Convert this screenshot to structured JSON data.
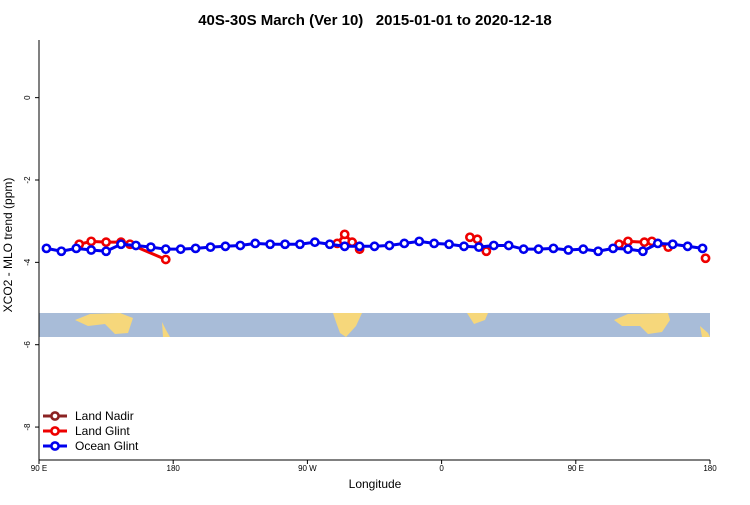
{
  "chart_data": {
    "type": "line",
    "title": "40S-30S March (Ver 10)   2015-01-01 to 2020-12-18",
    "xlabel": "Longitude",
    "ylabel": "XCO2 - MLO trend (ppm)",
    "xlim": [
      90,
      540
    ],
    "ylim": [
      -8.8,
      1.4
    ],
    "xticks": [
      {
        "value": 90,
        "label": "90 E"
      },
      {
        "value": 180,
        "label": "180"
      },
      {
        "value": 270,
        "label": "90 W"
      },
      {
        "value": 360,
        "label": "0"
      },
      {
        "value": 450,
        "label": "90 E"
      },
      {
        "value": 540,
        "label": "180"
      }
    ],
    "yticks": [
      0,
      -2,
      -4,
      -6,
      -8
    ],
    "legend": "bottom-left",
    "series": [
      {
        "name": "Land Nadir",
        "color": "#8b2323",
        "x": [],
        "values": []
      },
      {
        "name": "Land Glint",
        "color": "#ee0000",
        "x": [
          117,
          125,
          135,
          145,
          151,
          175,
          240,
          290,
          295,
          300,
          305,
          340,
          379,
          384,
          390,
          440,
          479,
          485,
          496,
          501,
          512,
          525,
          537
        ],
        "values": [
          -3.56,
          -3.49,
          -3.51,
          -3.51,
          -3.56,
          -3.93,
          null,
          -3.54,
          -3.32,
          -3.51,
          -3.68,
          null,
          -3.39,
          -3.44,
          -3.73,
          null,
          -3.56,
          -3.49,
          -3.51,
          -3.49,
          -3.63,
          null,
          -3.9
        ]
      },
      {
        "name": "Ocean Glint",
        "color": "#0000ee",
        "x": [
          95,
          105,
          115,
          125,
          135,
          145,
          155,
          165,
          175,
          185,
          195,
          205,
          215,
          225,
          235,
          245,
          255,
          265,
          275,
          285,
          295,
          305,
          315,
          325,
          335,
          345,
          355,
          365,
          375,
          385,
          395,
          405,
          415,
          425,
          435,
          445,
          455,
          465,
          475,
          485,
          495,
          505,
          515,
          525,
          535
        ],
        "values": [
          -3.66,
          -3.73,
          -3.66,
          -3.7,
          -3.73,
          -3.56,
          -3.59,
          -3.63,
          -3.68,
          -3.68,
          -3.66,
          -3.63,
          -3.61,
          -3.59,
          -3.54,
          -3.56,
          -3.56,
          -3.56,
          -3.51,
          -3.56,
          -3.61,
          -3.61,
          -3.61,
          -3.59,
          -3.54,
          -3.49,
          -3.54,
          -3.56,
          -3.61,
          -3.63,
          -3.59,
          -3.59,
          -3.68,
          -3.68,
          -3.66,
          -3.7,
          -3.68,
          -3.73,
          -3.66,
          -3.68,
          -3.73,
          -3.54,
          -3.56,
          -3.61,
          -3.66
        ]
      }
    ]
  }
}
